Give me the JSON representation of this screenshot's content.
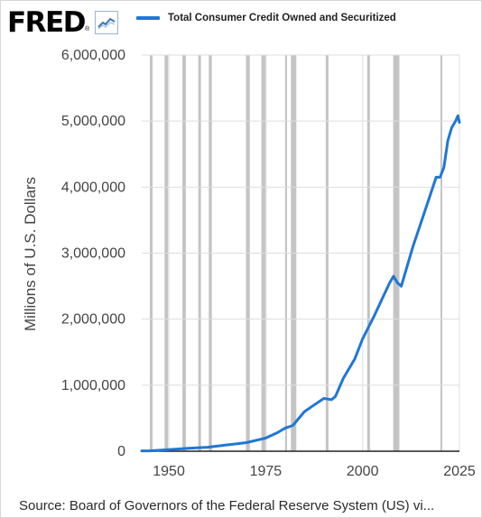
{
  "brand": {
    "logo_text": "FRED",
    "logo_mark": "registered",
    "logo_icon": "line-chart-icon"
  },
  "colors": {
    "series": "#1f77d6",
    "recession": "#c4c4c4",
    "grid": "#dedede",
    "axis": "#222222",
    "text": "#444444"
  },
  "chart_data": {
    "type": "line",
    "title": "",
    "xlabel": "",
    "ylabel": "Millions of U.S. Dollars",
    "xlim": [
      1943,
      2025
    ],
    "ylim": [
      0,
      6000000
    ],
    "x_ticks": [
      1950,
      1975,
      2000,
      2025
    ],
    "x_tick_labels": [
      "1950",
      "1975",
      "2000",
      "2025"
    ],
    "y_ticks": [
      0,
      1000000,
      2000000,
      3000000,
      4000000,
      5000000,
      6000000
    ],
    "y_tick_labels": [
      "0",
      "1,000,000",
      "2,000,000",
      "3,000,000",
      "4,000,000",
      "5,000,000",
      "6,000,000"
    ],
    "grid": true,
    "legend": "top",
    "recessions": [
      [
        1945.1,
        1945.8
      ],
      [
        1948.9,
        1949.8
      ],
      [
        1953.5,
        1954.4
      ],
      [
        1957.6,
        1958.3
      ],
      [
        1960.3,
        1961.1
      ],
      [
        1969.9,
        1970.9
      ],
      [
        1973.9,
        1975.2
      ],
      [
        1980.0,
        1980.5
      ],
      [
        1981.5,
        1982.9
      ],
      [
        1990.5,
        1991.2
      ],
      [
        2001.2,
        2001.9
      ],
      [
        2007.9,
        2009.5
      ],
      [
        2020.1,
        2020.4
      ]
    ],
    "series": [
      {
        "name": "Total Consumer Credit Owned and Securitized",
        "x": [
          1943,
          1945,
          1950,
          1955,
          1960,
          1965,
          1970,
          1975,
          1978,
          1980,
          1982,
          1985,
          1987,
          1990,
          1991,
          1992,
          1993,
          1995,
          1998,
          2000,
          2003,
          2005,
          2007,
          2008,
          2009,
          2010,
          2011,
          2013,
          2015,
          2017,
          2019,
          2020,
          2021,
          2022,
          2023,
          2024,
          2024.6,
          2025
        ],
        "values": [
          5000,
          6000,
          25000,
          45000,
          60000,
          95000,
          130000,
          200000,
          280000,
          350000,
          390000,
          600000,
          680000,
          800000,
          790000,
          780000,
          830000,
          1100000,
          1400000,
          1700000,
          2050000,
          2300000,
          2550000,
          2650000,
          2550000,
          2500000,
          2700000,
          3100000,
          3450000,
          3800000,
          4150000,
          4150000,
          4300000,
          4700000,
          4900000,
          5000000,
          5080000,
          4980000
        ]
      }
    ]
  },
  "source_text": "Source: Board of Governors of the Federal Reserve System (US) vi..."
}
